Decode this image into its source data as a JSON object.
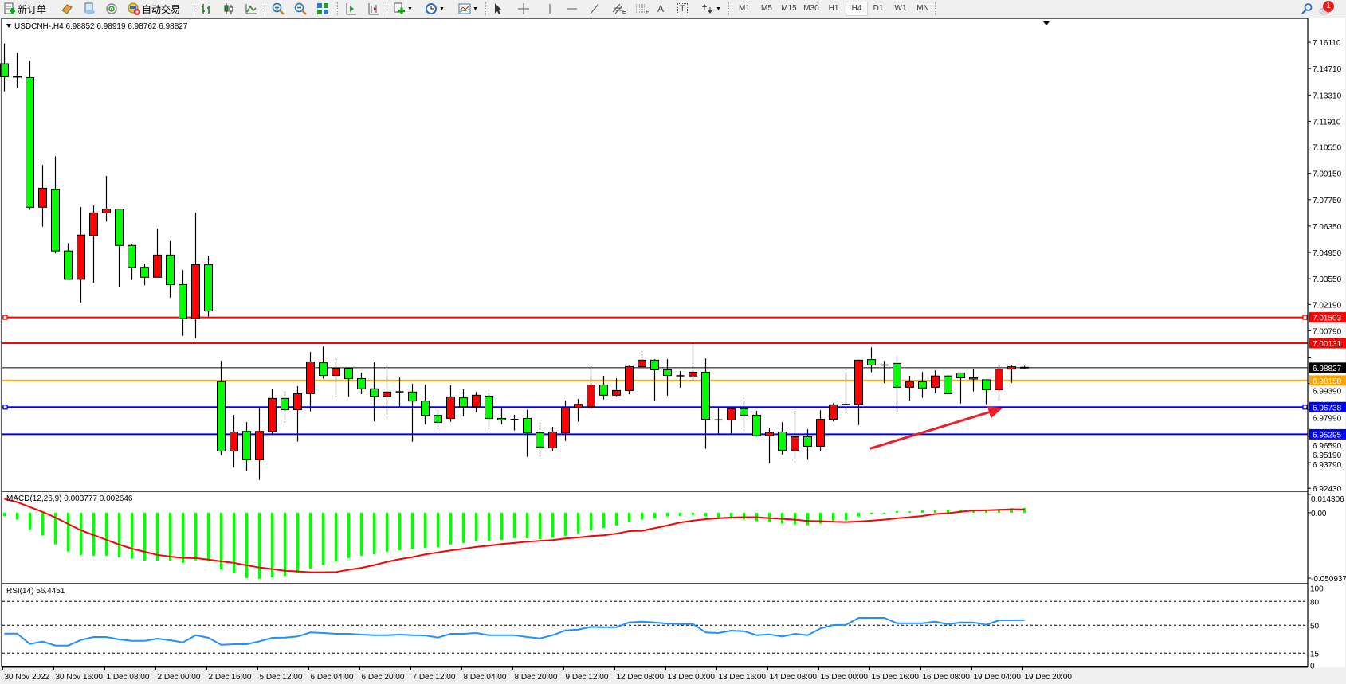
{
  "toolbar": {
    "new_order_label": "新订单",
    "autotrade_label": "自动交易",
    "timeframes": [
      "M1",
      "M5",
      "M15",
      "M30",
      "H1",
      "H4",
      "D1",
      "W1",
      "MN"
    ],
    "active_timeframe": "H4",
    "fib_e_label": "E",
    "fib_f_label": "F",
    "text_tool_label": "A",
    "text_label_tool": "T",
    "notification_count": "1"
  },
  "chart": {
    "header": "USDCNH-,H4  6.98852 6.98919 6.98762 6.98827",
    "macd_header": "MACD(12,26,9) 0.003777 0.002646",
    "rsi_header": "RSI(14) 56.4451",
    "colors": {
      "bear": "#00ff00",
      "bull": "#ff0000",
      "signal": "#ff0000",
      "rsi": "#1e90ff",
      "hist": "#00ff00",
      "arrow": "#e8202a"
    }
  },
  "chart_data": [
    {
      "type": "candlestick",
      "symbol": "USDCNH-",
      "timeframe": "H4",
      "ylim": [
        6.9231,
        7.1734
      ],
      "y_ticks": [
        "7.16110",
        "7.14710",
        "7.13310",
        "7.11910",
        "7.10550",
        "7.09150",
        "7.07750",
        "7.06350",
        "7.04950",
        "7.03550",
        "7.02190",
        "7.00790",
        "6.99390",
        "6.97990",
        "6.96590",
        "6.95190",
        "6.93790",
        "6.92430"
      ],
      "x_labels": [
        "30 Nov 2022",
        "30 Nov 16:00",
        "1 Dec 08:00",
        "2 Dec 00:00",
        "2 Dec 16:00",
        "5 Dec 12:00",
        "6 Dec 04:00",
        "6 Dec 20:00",
        "7 Dec 12:00",
        "8 Dec 04:00",
        "8 Dec 20:00",
        "9 Dec 12:00",
        "12 Dec 08:00",
        "13 Dec 00:00",
        "13 Dec 16:00",
        "14 Dec 08:00",
        "15 Dec 00:00",
        "15 Dec 16:00",
        "16 Dec 08:00",
        "19 Dec 04:00",
        "19 Dec 20:00"
      ],
      "x_label_every": 4,
      "ohlc": [
        [
          7.1497,
          7.1605,
          7.1351,
          7.1428
        ],
        [
          7.143,
          7.1555,
          7.1369,
          7.1428
        ],
        [
          7.1423,
          7.1512,
          7.0721,
          7.0735
        ],
        [
          7.0735,
          7.0959,
          7.0632,
          7.0836
        ],
        [
          7.0831,
          7.1005,
          7.049,
          7.0503
        ],
        [
          7.0503,
          7.0544,
          7.0352,
          7.0352
        ],
        [
          7.0352,
          7.0736,
          7.0229,
          7.0587
        ],
        [
          7.0585,
          7.0744,
          7.0333,
          7.0705
        ],
        [
          7.0705,
          7.0901,
          7.0659,
          7.0725
        ],
        [
          7.0725,
          7.0725,
          7.0313,
          7.0532
        ],
        [
          7.0532,
          7.0539,
          7.0349,
          7.0416
        ],
        [
          7.0416,
          7.0436,
          7.0321,
          7.0363
        ],
        [
          7.0363,
          7.0621,
          7.0363,
          7.0481
        ],
        [
          7.0481,
          7.0555,
          7.0255,
          7.0324
        ],
        [
          7.0324,
          7.0401,
          7.0052,
          7.0144
        ],
        [
          7.0144,
          7.0705,
          7.004,
          7.043
        ],
        [
          7.043,
          7.0478,
          7.0155,
          7.0184
        ],
        [
          6.9809,
          6.992,
          6.9419,
          6.944
        ],
        [
          6.944,
          6.9633,
          6.9353,
          6.9542
        ],
        [
          6.9545,
          6.9594,
          6.9334,
          6.9394
        ],
        [
          6.9394,
          6.9671,
          6.9287,
          6.9545
        ],
        [
          6.9545,
          6.9772,
          6.9525,
          6.972
        ],
        [
          6.972,
          6.9759,
          6.9591,
          6.966
        ],
        [
          6.966,
          6.9785,
          6.9491,
          6.9745
        ],
        [
          6.9745,
          6.9966,
          6.9651,
          6.9914
        ],
        [
          6.9909,
          6.9995,
          6.9825,
          6.9842
        ],
        [
          6.9842,
          6.9932,
          6.9726,
          6.988
        ],
        [
          6.988,
          6.988,
          6.9729,
          6.9825
        ],
        [
          6.9825,
          6.9857,
          6.9743,
          6.9771
        ],
        [
          6.9771,
          6.9911,
          6.9599,
          6.9732
        ],
        [
          6.9732,
          6.9877,
          6.9634,
          6.9754
        ],
        [
          6.9755,
          6.9831,
          6.9676,
          6.9755
        ],
        [
          6.9754,
          6.9797,
          6.949,
          6.9706
        ],
        [
          6.9706,
          6.9792,
          6.9583,
          6.963
        ],
        [
          6.963,
          6.966,
          6.9557,
          6.9593
        ],
        [
          6.9614,
          6.9789,
          6.9596,
          6.9728
        ],
        [
          6.9723,
          6.9768,
          6.9625,
          6.9676
        ],
        [
          6.9676,
          6.9754,
          6.9646,
          6.9737
        ],
        [
          6.9732,
          6.9749,
          6.9557,
          6.9614
        ],
        [
          6.9614,
          6.9673,
          6.9583,
          6.9606
        ],
        [
          6.9608,
          6.9633,
          6.955,
          6.9608
        ],
        [
          6.9614,
          6.966,
          6.941,
          6.9537
        ],
        [
          6.9537,
          6.9593,
          6.941,
          6.9462
        ],
        [
          6.9457,
          6.9569,
          6.9439,
          6.9542
        ],
        [
          6.9537,
          6.9708,
          6.9494,
          6.9671
        ],
        [
          6.9671,
          6.9717,
          6.9596,
          6.9689
        ],
        [
          6.9676,
          6.9891,
          6.9663,
          6.9791
        ],
        [
          6.9791,
          6.984,
          6.9714,
          6.9737
        ],
        [
          6.9737,
          6.9826,
          6.9731,
          6.9762
        ],
        [
          6.9762,
          6.9894,
          6.9742,
          6.9889
        ],
        [
          6.9888,
          6.9971,
          6.9888,
          6.9923
        ],
        [
          6.9923,
          6.9928,
          6.9706,
          6.9872
        ],
        [
          6.9872,
          6.9928,
          6.9735,
          6.9842
        ],
        [
          6.984,
          6.9865,
          6.9777,
          6.984
        ],
        [
          6.9839,
          7.0014,
          6.9811,
          6.9859
        ],
        [
          6.9859,
          6.9932,
          6.9453,
          6.9609
        ],
        [
          6.9606,
          6.9671,
          6.9533,
          6.9606
        ],
        [
          6.9606,
          6.9671,
          6.9533,
          6.9665
        ],
        [
          6.9665,
          6.9708,
          6.9566,
          6.9631
        ],
        [
          6.9631,
          6.9654,
          6.9517,
          6.9522
        ],
        [
          6.9522,
          6.9565,
          6.9376,
          6.954
        ],
        [
          6.9542,
          6.9594,
          6.9422,
          6.9445
        ],
        [
          6.9445,
          6.9654,
          6.9397,
          6.9517
        ],
        [
          6.9517,
          6.9556,
          6.9394,
          6.9466
        ],
        [
          6.9466,
          6.9657,
          6.944,
          6.9609
        ],
        [
          6.9609,
          6.9694,
          6.9599,
          6.9686
        ],
        [
          6.9688,
          6.986,
          6.9642,
          6.9688
        ],
        [
          6.9689,
          6.9925,
          6.9579,
          6.9923
        ],
        [
          6.9926,
          6.9991,
          6.9859,
          6.9897
        ],
        [
          6.9897,
          6.9919,
          6.9802,
          6.9897
        ],
        [
          6.9906,
          6.9942,
          6.9648,
          6.9779
        ],
        [
          6.9779,
          6.984,
          6.9709,
          6.9808
        ],
        [
          6.9808,
          6.986,
          6.9723,
          6.9775
        ],
        [
          6.9779,
          6.9869,
          6.9748,
          6.9839
        ],
        [
          6.9839,
          6.9842,
          6.9742,
          6.9745
        ],
        [
          6.9855,
          6.9855,
          6.9693,
          6.9829
        ],
        [
          6.9829,
          6.9874,
          6.9757,
          6.9823
        ],
        [
          6.9819,
          6.9819,
          6.9689,
          6.9766
        ],
        [
          6.9766,
          6.9894,
          6.9706,
          6.9875
        ],
        [
          6.9875,
          6.9895,
          6.9803,
          6.9888
        ],
        [
          6.98852,
          6.98919,
          6.98762,
          6.98827
        ]
      ],
      "hlines": [
        {
          "price": 7.01503,
          "label": "7.01503",
          "color": "#ff0000",
          "label_text_color": "#ffffff",
          "handles": true
        },
        {
          "price": 7.00131,
          "label": "7.00131",
          "color": "#ff0000",
          "label_text_color": "#ffffff",
          "handles": false
        },
        {
          "price": 6.98827,
          "label": "6.98827",
          "color": "#000000",
          "label_text_color": "#ffffff",
          "handles": false,
          "thin": true
        },
        {
          "price": 6.9815,
          "label": "6.98150",
          "color": "#ffa500",
          "label_text_color": "#ffffff",
          "handles": false
        },
        {
          "price": 6.96738,
          "label": "6.96738",
          "color": "#0000ff",
          "label_text_color": "#ffffff",
          "handles": true
        },
        {
          "price": 6.95295,
          "label": "6.95295",
          "color": "#0000ff",
          "label_text_color": "#ffffff",
          "handles": false
        }
      ],
      "annotation_arrow": {
        "from": {
          "bar": 67.9,
          "price": 6.9454
        },
        "to": {
          "bar": 78.3,
          "price": 6.9669
        }
      }
    },
    {
      "type": "bar+line",
      "name": "MACD(12,26,9)",
      "ylim": [
        -0.0547,
        0.0161
      ],
      "y_ticks": [
        "0.014306",
        "0.00",
        "-0.050937"
      ],
      "y_tick_values": [
        0.014306,
        0,
        -0.050937
      ],
      "histogram": [
        -0.0027,
        -0.0054,
        -0.013,
        -0.0178,
        -0.0247,
        -0.0303,
        -0.0329,
        -0.0335,
        -0.0335,
        -0.0348,
        -0.0358,
        -0.0373,
        -0.0373,
        -0.0373,
        -0.0391,
        -0.0371,
        -0.0377,
        -0.0441,
        -0.0472,
        -0.0509,
        -0.0515,
        -0.0503,
        -0.0491,
        -0.0472,
        -0.0435,
        -0.0404,
        -0.0379,
        -0.0354,
        -0.0335,
        -0.0323,
        -0.0304,
        -0.0292,
        -0.028,
        -0.0273,
        -0.0267,
        -0.0248,
        -0.0236,
        -0.0224,
        -0.0217,
        -0.0211,
        -0.0199,
        -0.0199,
        -0.0205,
        -0.0193,
        -0.018,
        -0.0161,
        -0.0137,
        -0.0118,
        -0.0099,
        -0.0075,
        -0.0054,
        -0.0042,
        -0.0029,
        -0.0025,
        -0.0017,
        -0.0029,
        -0.0042,
        -0.0046,
        -0.0054,
        -0.0066,
        -0.0073,
        -0.0085,
        -0.0091,
        -0.0098,
        -0.0085,
        -0.0073,
        -0.006,
        -0.0029,
        -0.0012,
        -0.0004,
        0.0012,
        0.001,
        0.0019,
        0.0019,
        0.0025,
        0.0025,
        0.0023,
        0.0019,
        0.0029,
        0.0035,
        0.0038
      ],
      "signal": [
        0.0107,
        0.0083,
        0.0045,
        0.0006,
        -0.0037,
        -0.0087,
        -0.0137,
        -0.0174,
        -0.0211,
        -0.0248,
        -0.028,
        -0.0304,
        -0.0329,
        -0.0342,
        -0.0352,
        -0.0354,
        -0.0365,
        -0.0379,
        -0.0391,
        -0.041,
        -0.0427,
        -0.0439,
        -0.0452,
        -0.0458,
        -0.0464,
        -0.0464,
        -0.0462,
        -0.0445,
        -0.043,
        -0.0408,
        -0.0383,
        -0.0362,
        -0.0346,
        -0.0325,
        -0.0309,
        -0.0294,
        -0.0281,
        -0.0267,
        -0.0257,
        -0.0244,
        -0.0236,
        -0.0226,
        -0.0219,
        -0.0213,
        -0.0201,
        -0.0193,
        -0.0182,
        -0.0176,
        -0.0163,
        -0.0143,
        -0.0141,
        -0.012,
        -0.0099,
        -0.0076,
        -0.0062,
        -0.005,
        -0.0043,
        -0.0037,
        -0.0035,
        -0.0035,
        -0.0042,
        -0.0048,
        -0.0054,
        -0.0064,
        -0.0066,
        -0.007,
        -0.0073,
        -0.0068,
        -0.0062,
        -0.0054,
        -0.0043,
        -0.0035,
        -0.0025,
        -0.001,
        -0.0004,
        0.0008,
        0.0017,
        0.0019,
        0.0023,
        0.0027,
        0.0026
      ]
    },
    {
      "type": "line",
      "name": "RSI(14)",
      "ylim": [
        -0.7,
        101.3
      ],
      "y_ticks": [
        "100",
        "80",
        "50",
        "15",
        "0"
      ],
      "y_tick_values": [
        100,
        80,
        50,
        15,
        0
      ],
      "levels": [
        80,
        50,
        15
      ],
      "values": [
        39.6,
        39.6,
        26.6,
        29.6,
        24.6,
        24.6,
        31.6,
        35.3,
        35.3,
        32.3,
        30.6,
        30.6,
        33.3,
        31.3,
        28.6,
        37.6,
        34.3,
        25.6,
        26.3,
        26.3,
        29.9,
        34.3,
        34.6,
        36.0,
        41.0,
        40.3,
        39.3,
        39.3,
        38.3,
        37.6,
        37.6,
        38.3,
        37.6,
        37.3,
        34.6,
        39.3,
        39.3,
        40.3,
        37.6,
        37.6,
        37.6,
        35.3,
        33.6,
        37.6,
        43.6,
        44.6,
        47.9,
        47.6,
        47.6,
        53.6,
        54.6,
        53.6,
        52.0,
        51.6,
        51.6,
        41.0,
        40.3,
        43.3,
        42.6,
        37.6,
        38.6,
        36.0,
        39.3,
        37.6,
        46.0,
        50.3,
        50.6,
        59.3,
        59.3,
        59.3,
        52.6,
        52.6,
        52.6,
        54.6,
        51.3,
        53.6,
        53.6,
        50.6,
        56.3,
        56.3,
        56.4
      ]
    }
  ]
}
